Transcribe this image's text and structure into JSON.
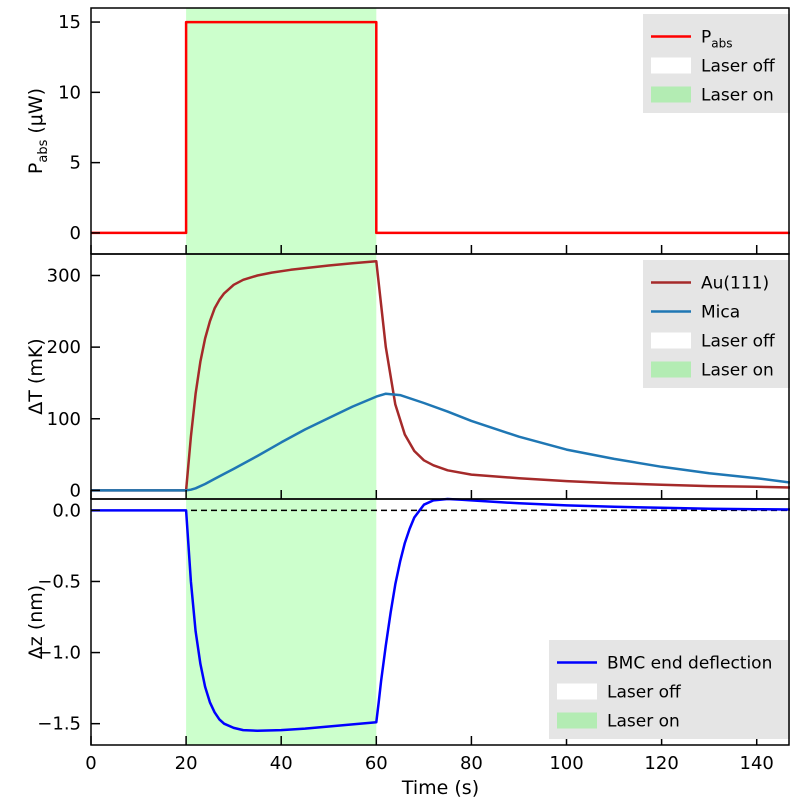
{
  "chart_data": [
    {
      "type": "line",
      "ylabel_main": "P",
      "ylabel_sub": "abs",
      "ylabel_unit": " (μW)",
      "xlim": [
        0,
        147
      ],
      "ylim": [
        -1.5,
        16
      ],
      "yticks": [
        0,
        5,
        10,
        15
      ],
      "shaded_region": {
        "x_start": 20,
        "x_end": 60,
        "color": "#ccffcc"
      },
      "legend": {
        "position": "top-right",
        "entries": [
          {
            "kind": "line",
            "label": "P",
            "label_sub": "abs",
            "color": "#ff0000"
          },
          {
            "kind": "patch",
            "label": "Laser off",
            "color": "#ffffff"
          },
          {
            "kind": "patch",
            "label": "Laser on",
            "color": "#b3ecb3"
          }
        ]
      },
      "series": [
        {
          "id": "pabs",
          "color": "#ff0000",
          "x": [
            0,
            20,
            20,
            60,
            60,
            147
          ],
          "y": [
            0,
            0,
            15,
            15,
            0,
            0
          ]
        }
      ]
    },
    {
      "type": "line",
      "ylabel": "ΔT (mK)",
      "xlim": [
        0,
        147
      ],
      "ylim": [
        -12,
        330
      ],
      "yticks": [
        0,
        100,
        200,
        300
      ],
      "shaded_region": {
        "x_start": 20,
        "x_end": 60,
        "color": "#ccffcc"
      },
      "legend": {
        "position": "top-right",
        "entries": [
          {
            "kind": "line",
            "label": "Au(111)",
            "color": "#a52a2a"
          },
          {
            "kind": "line",
            "label": "Mica",
            "color": "#1f77b4"
          },
          {
            "kind": "patch",
            "label": "Laser off",
            "color": "#ffffff"
          },
          {
            "kind": "patch",
            "label": "Laser on",
            "color": "#b3ecb3"
          }
        ]
      },
      "series": [
        {
          "id": "au111",
          "name": "Au(111)",
          "color": "#a52a2a",
          "x": [
            0,
            20,
            21,
            22,
            23,
            24,
            25,
            26,
            27,
            28,
            30,
            32,
            35,
            38,
            42,
            46,
            50,
            55,
            60,
            62,
            64,
            66,
            68,
            70,
            72,
            75,
            80,
            90,
            100,
            110,
            120,
            130,
            140,
            147
          ],
          "y": [
            0,
            0,
            75,
            135,
            180,
            212,
            236,
            254,
            266,
            275,
            287,
            294,
            300,
            304,
            308,
            311,
            314,
            317,
            320,
            200,
            120,
            78,
            55,
            42,
            35,
            28,
            22,
            17,
            13,
            10,
            8,
            6,
            5,
            4
          ]
        },
        {
          "id": "mica",
          "name": "Mica",
          "color": "#1f77b4",
          "x": [
            0,
            20,
            21,
            22,
            24,
            26,
            28,
            30,
            35,
            40,
            45,
            50,
            55,
            60,
            62,
            65,
            70,
            75,
            80,
            90,
            100,
            110,
            120,
            130,
            140,
            147
          ],
          "y": [
            0,
            0,
            1,
            3,
            9,
            16,
            23,
            30,
            48,
            67,
            85,
            101,
            117,
            131,
            135,
            133,
            122,
            110,
            97,
            75,
            57,
            44,
            33,
            24,
            17,
            11
          ]
        }
      ]
    },
    {
      "type": "line",
      "xlabel": "Time (s)",
      "ylabel": "Δz (nm)",
      "xlim": [
        0,
        147
      ],
      "ylim": [
        -1.65,
        0.08
      ],
      "xticks": [
        0,
        20,
        40,
        60,
        80,
        100,
        120,
        140
      ],
      "yticks": [
        0.0,
        -0.5,
        -1.0,
        -1.5
      ],
      "ytick_labels": [
        "0.0",
        "−0.5",
        "−1.0",
        "−1.5"
      ],
      "shaded_region": {
        "x_start": 20,
        "x_end": 60,
        "color": "#ccffcc"
      },
      "reference_line": {
        "y": 0,
        "style": "dashed",
        "color": "#000000"
      },
      "legend": {
        "position": "bottom-right",
        "entries": [
          {
            "kind": "line",
            "label": "BMC end deflection",
            "color": "#0000ff"
          },
          {
            "kind": "patch",
            "label": "Laser off",
            "color": "#ffffff"
          },
          {
            "kind": "patch",
            "label": "Laser on",
            "color": "#b3ecb3"
          }
        ]
      },
      "series": [
        {
          "id": "bmc",
          "name": "BMC end deflection",
          "color": "#0000ff",
          "x": [
            0,
            20,
            20.5,
            21,
            22,
            23,
            24,
            25,
            26,
            27,
            28,
            30,
            32,
            35,
            40,
            45,
            50,
            55,
            60,
            60.5,
            61,
            62,
            63,
            64,
            65,
            66,
            67,
            68,
            70,
            72,
            75,
            78,
            80,
            90,
            100,
            110,
            120,
            130,
            140,
            147
          ],
          "y": [
            0,
            0,
            -0.25,
            -0.5,
            -0.85,
            -1.08,
            -1.24,
            -1.35,
            -1.42,
            -1.47,
            -1.5,
            -1.53,
            -1.545,
            -1.55,
            -1.545,
            -1.535,
            -1.52,
            -1.505,
            -1.49,
            -1.35,
            -1.2,
            -0.95,
            -0.72,
            -0.52,
            -0.36,
            -0.23,
            -0.13,
            -0.05,
            0.04,
            0.07,
            0.08,
            0.075,
            0.07,
            0.05,
            0.035,
            0.025,
            0.018,
            0.012,
            0.008,
            0.006
          ]
        }
      ]
    }
  ]
}
